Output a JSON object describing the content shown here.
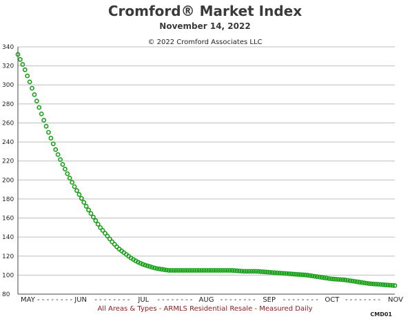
{
  "chart_data": {
    "type": "line",
    "title": "Cromford® Market Index",
    "subtitle": "November 14, 2022",
    "copyright": "© 2022 Cromford Associates LLC",
    "footer": "All Areas & Types - ARMLS Residential Resale - Measured Daily",
    "code": "CMD01",
    "ylim": [
      80,
      340
    ],
    "yticks": [
      80,
      100,
      120,
      140,
      160,
      180,
      200,
      220,
      240,
      260,
      280,
      300,
      320,
      340
    ],
    "xlim": [
      0,
      6
    ],
    "xtick_labels": [
      "MAY",
      "JUN",
      "JUL",
      "AUG",
      "SEP",
      "OCT",
      "NOV"
    ],
    "xtick_separator": "- - - - - - - -",
    "grid": true,
    "series": [
      {
        "color": "#17a017",
        "marker": "circle",
        "x": [
          0,
          0.1,
          0.2,
          0.3,
          0.4,
          0.5,
          0.6,
          0.7,
          0.8,
          0.9,
          1.0,
          1.1,
          1.2,
          1.3,
          1.4,
          1.5,
          1.6,
          1.7,
          1.8,
          1.9,
          2.0,
          2.1,
          2.2,
          2.3,
          2.4,
          2.5,
          2.6,
          2.7,
          2.8,
          2.9,
          3.0,
          3.2,
          3.4,
          3.6,
          3.8,
          4.0,
          4.2,
          4.4,
          4.6,
          4.8,
          5.0,
          5.2,
          5.4,
          5.6,
          5.8,
          6.0
        ],
        "y": [
          332,
          318,
          301,
          283,
          265,
          248,
          232,
          218,
          205,
          193,
          182,
          171,
          161,
          151,
          143,
          135,
          128,
          123,
          118,
          114,
          111,
          109,
          107,
          106,
          105,
          105,
          105,
          105,
          105,
          105,
          105,
          105,
          105,
          104,
          104,
          103,
          102,
          101,
          100,
          98,
          96,
          95,
          93,
          91,
          90,
          89
        ]
      }
    ]
  }
}
